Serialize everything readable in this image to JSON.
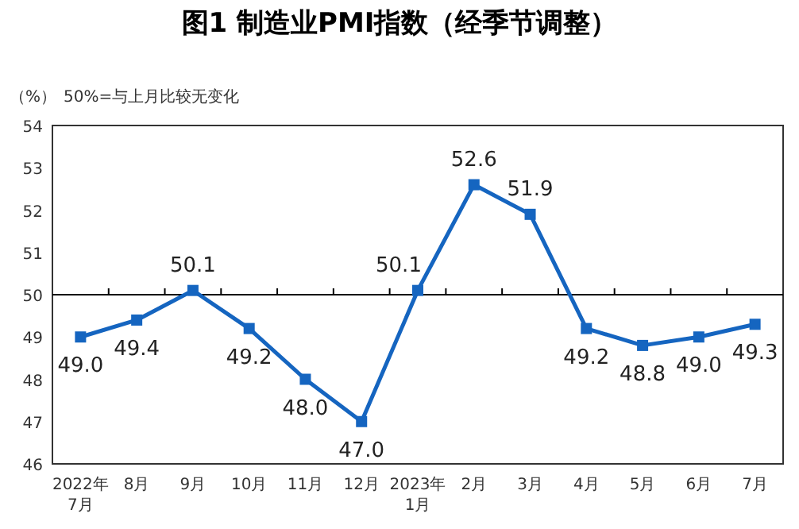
{
  "chart_data": {
    "type": "line",
    "title": "图1 制造业PMI指数（经季节调整）",
    "ylabel": "（%）",
    "annotations": [
      "50%=与上月比较无变化"
    ],
    "categories": [
      "2022年\n7月",
      "8月",
      "9月",
      "10月",
      "11月",
      "12月",
      "2023年\n1月",
      "2月",
      "3月",
      "4月",
      "5月",
      "6月",
      "7月"
    ],
    "series": [
      {
        "color": "#1565c0",
        "values": [
          49.0,
          49.4,
          50.1,
          49.2,
          48.0,
          47.0,
          50.1,
          52.6,
          51.9,
          49.2,
          48.8,
          49.0,
          49.3
        ],
        "value_labels": [
          "49.0",
          "49.4",
          "50.1",
          "49.2",
          "48.0",
          "47.0",
          "50.1",
          "52.6",
          "51.9",
          "49.2",
          "48.8",
          "49.0",
          "49.3"
        ]
      }
    ],
    "ylim": [
      46,
      54
    ],
    "yticks": [
      46,
      47,
      48,
      49,
      50,
      51,
      52,
      53,
      54
    ],
    "ref_lines": [
      {
        "axis": "y",
        "value": 50,
        "color": "#000000"
      }
    ],
    "marker": "square",
    "line_style": "solid"
  }
}
